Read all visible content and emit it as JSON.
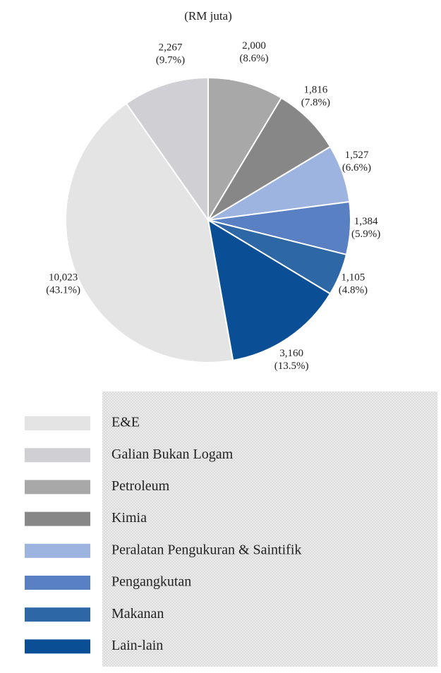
{
  "chart_data": {
    "type": "pie",
    "title": "(RM juta)",
    "categories": [
      "E&E",
      "Galian Bukan Logam",
      "Petroleum",
      "Kimia",
      "Peralatan Pengukuran & Saintifik",
      "Pengangkutan",
      "Makanan",
      "Lain-lain"
    ],
    "values": [
      10023,
      2267,
      2000,
      1816,
      1527,
      1384,
      1105,
      3160
    ],
    "value_labels": [
      "10,023",
      "2,267",
      "2,000",
      "1,816",
      "1,527",
      "1,384",
      "1,105",
      "3,160"
    ],
    "percent_labels": [
      "(43.1%)",
      "(9.7%)",
      "(8.6%)",
      "(7.8%)",
      "(6.6%)",
      "(5.9%)",
      "(4.8%)",
      "(13.5%)"
    ],
    "colors": [
      "#e4e4e4",
      "#cfcfd4",
      "#a8a8a8",
      "#878787",
      "#9db4e0",
      "#5a80c4",
      "#2d67a6",
      "#0a4f96"
    ]
  }
}
